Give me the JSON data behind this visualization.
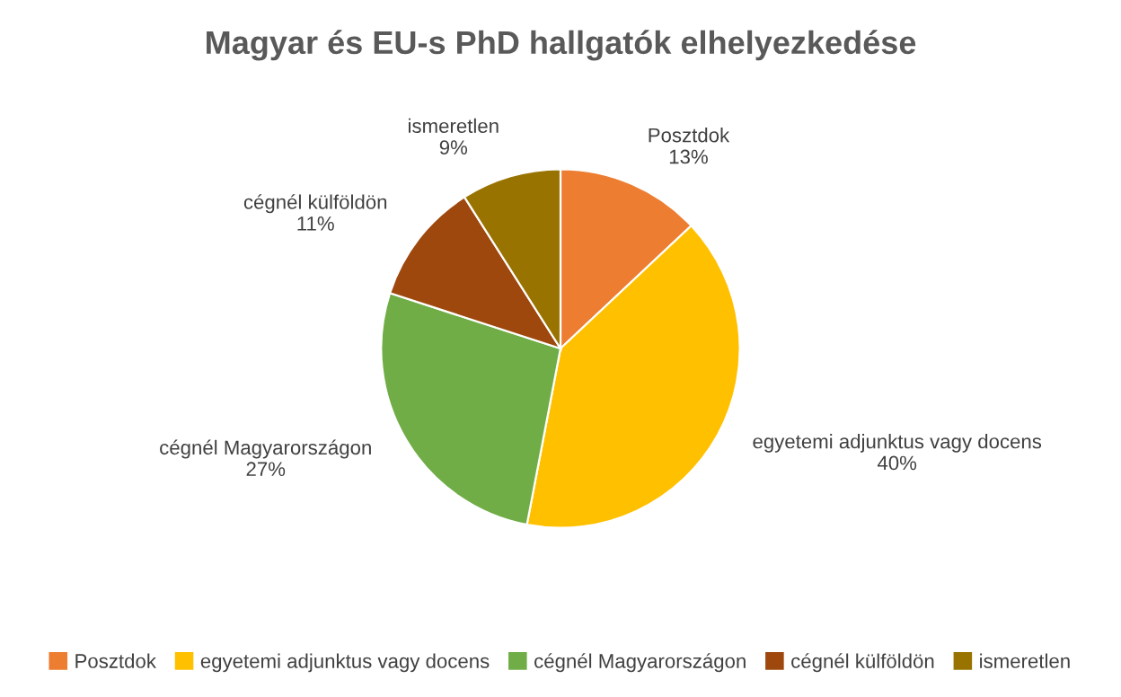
{
  "chart_data": {
    "type": "pie",
    "title": "Magyar és EU-s PhD hallgatók elhelyezkedése",
    "categories": [
      "Posztdok",
      "egyetemi adjunktus vagy docens",
      "cégnél Magyarországon",
      "cégnél külföldön",
      "ismeretlen"
    ],
    "values": [
      13,
      40,
      27,
      11,
      9
    ],
    "value_labels": [
      "13%",
      "40%",
      "27%",
      "11%",
      "9%"
    ],
    "colors": [
      "#ed7d31",
      "#ffc000",
      "#70ad47",
      "#9e480e",
      "#997300"
    ],
    "legend": "bottom"
  }
}
